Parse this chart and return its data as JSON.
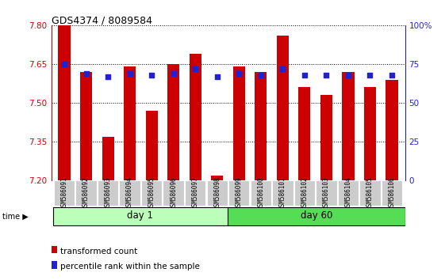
{
  "title": "GDS4374 / 8089584",
  "samples": [
    "GSM586091",
    "GSM586092",
    "GSM586093",
    "GSM586094",
    "GSM586095",
    "GSM586096",
    "GSM586097",
    "GSM586098",
    "GSM586099",
    "GSM586100",
    "GSM586101",
    "GSM586102",
    "GSM586103",
    "GSM586104",
    "GSM586105",
    "GSM586106"
  ],
  "transformed_count": [
    7.8,
    7.62,
    7.37,
    7.64,
    7.47,
    7.65,
    7.69,
    7.22,
    7.64,
    7.62,
    7.76,
    7.56,
    7.53,
    7.62,
    7.56,
    7.59
  ],
  "percentile_rank": [
    75,
    69,
    67,
    69,
    68,
    69,
    72,
    67,
    69,
    68,
    72,
    68,
    68,
    68,
    68,
    68
  ],
  "day1_count": 8,
  "day60_count": 8,
  "ylim_left": [
    7.2,
    7.8
  ],
  "ylim_right": [
    0,
    100
  ],
  "yticks_left": [
    7.2,
    7.35,
    7.5,
    7.65,
    7.8
  ],
  "yticks_right": [
    0,
    25,
    50,
    75,
    100
  ],
  "bar_color": "#cc0000",
  "dot_color": "#2222cc",
  "day1_color": "#bbffbb",
  "day60_color": "#55dd55",
  "tick_color_left": "#cc0000",
  "tick_color_right": "#2222cc",
  "bar_width": 0.55,
  "legend_items": [
    "transformed count",
    "percentile rank within the sample"
  ],
  "dot_size": 16
}
